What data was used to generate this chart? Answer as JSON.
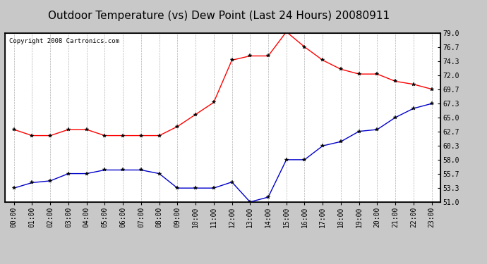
{
  "title": "Outdoor Temperature (vs) Dew Point (Last 24 Hours) 20080911",
  "copyright": "Copyright 2008 Cartronics.com",
  "hours": [
    "00:00",
    "01:00",
    "02:00",
    "03:00",
    "04:00",
    "05:00",
    "06:00",
    "07:00",
    "08:00",
    "09:00",
    "10:00",
    "11:00",
    "12:00",
    "13:00",
    "14:00",
    "15:00",
    "16:00",
    "17:00",
    "18:00",
    "19:00",
    "20:00",
    "21:00",
    "22:00",
    "23:00"
  ],
  "temp": [
    63.0,
    62.0,
    62.0,
    63.0,
    63.0,
    62.0,
    62.0,
    62.0,
    62.0,
    63.5,
    65.5,
    67.5,
    74.5,
    75.2,
    75.2,
    79.2,
    76.7,
    74.5,
    73.0,
    72.2,
    72.2,
    71.0,
    70.5,
    69.7
  ],
  "dew": [
    53.3,
    54.2,
    54.5,
    55.7,
    55.7,
    56.3,
    56.3,
    56.3,
    55.7,
    53.3,
    53.3,
    53.3,
    54.3,
    51.0,
    51.8,
    58.0,
    58.0,
    60.3,
    61.0,
    62.7,
    63.0,
    65.0,
    66.5,
    67.3
  ],
  "temp_color": "#ff0000",
  "dew_color": "#0000cc",
  "bg_color": "#c8c8c8",
  "plot_bg": "#ffffff",
  "grid_color": "#aaaaaa",
  "ylim_min": 51.0,
  "ylim_max": 79.0,
  "yticks": [
    51.0,
    53.3,
    55.7,
    58.0,
    60.3,
    62.7,
    65.0,
    67.3,
    69.7,
    72.0,
    74.3,
    76.7,
    79.0
  ],
  "title_fontsize": 11,
  "tick_fontsize": 7,
  "copyright_fontsize": 6.5
}
